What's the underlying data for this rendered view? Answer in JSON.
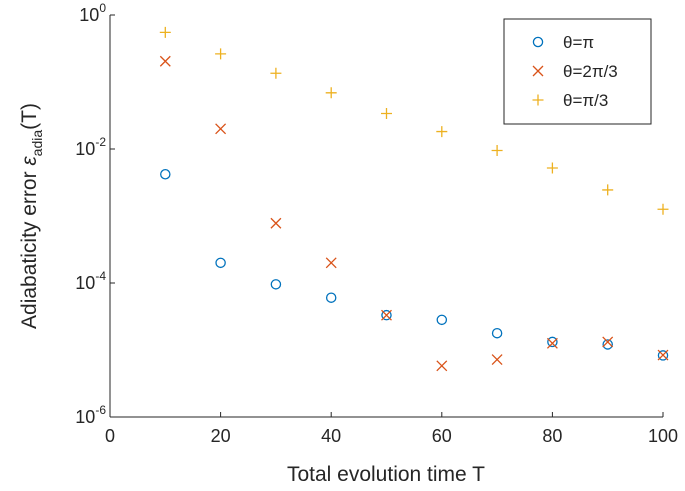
{
  "chart_data": {
    "type": "scatter",
    "xlabel": "Total evolution time T",
    "ylabel_parts": {
      "prefix": "Adiabaticity error ",
      "symbol": "ε",
      "subscript": "adia",
      "suffix": "(T)"
    },
    "x": [
      10,
      20,
      30,
      40,
      50,
      60,
      70,
      80,
      90,
      100
    ],
    "xlim": [
      0,
      100
    ],
    "ylim": [
      1e-06,
      1
    ],
    "yscale": "log",
    "grid": false,
    "legend_placement": "top-right",
    "x_ticks": [
      {
        "value": 0,
        "label": "0"
      },
      {
        "value": 20,
        "label": "20"
      },
      {
        "value": 40,
        "label": "40"
      },
      {
        "value": 60,
        "label": "60"
      },
      {
        "value": 80,
        "label": "80"
      },
      {
        "value": 100,
        "label": "100"
      }
    ],
    "y_ticks": [
      {
        "value": 1e-06,
        "base": "10",
        "exponent": "-6"
      },
      {
        "value": 0.0001,
        "base": "10",
        "exponent": "-4"
      },
      {
        "value": 0.01,
        "base": "10",
        "exponent": "-2"
      },
      {
        "value": 1,
        "base": "10",
        "exponent": "0"
      }
    ],
    "series": [
      {
        "name": "θ=π",
        "marker": "circle",
        "color": "#0072BD",
        "values": [
          0.0042,
          0.0002,
          9.55e-05,
          6.03e-05,
          3.31e-05,
          2.82e-05,
          1.78e-05,
          1.32e-05,
          1.21e-05,
          8.3e-06
        ]
      },
      {
        "name": "θ=2π/3",
        "marker": "x",
        "color": "#D95319",
        "values": [
          0.204,
          0.02,
          0.00078,
          0.0002,
          3.31e-05,
          5.8e-06,
          7.2e-06,
          1.26e-05,
          1.32e-05,
          8.4e-06
        ]
      },
      {
        "name": "θ=π/3",
        "marker": "plus",
        "color": "#EDB120",
        "values": [
          0.55,
          0.263,
          0.135,
          0.069,
          0.0339,
          0.0182,
          0.0095,
          0.0052,
          0.00245,
          0.00126
        ]
      }
    ]
  }
}
